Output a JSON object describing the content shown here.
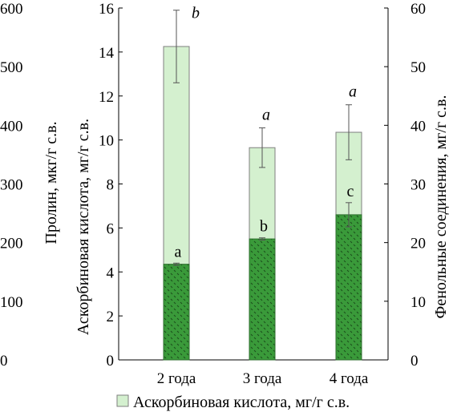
{
  "chart_data": {
    "type": "bar",
    "categories": [
      "2 года",
      "3 года",
      "4 года"
    ],
    "axes": {
      "left_outer": {
        "label": "Пролин, мкг/г с.в.",
        "ylim": [
          0,
          600
        ],
        "ticks": [
          "0",
          "100",
          "200",
          "300",
          "400",
          "500",
          "600"
        ]
      },
      "left_inner": {
        "label": "Аскорбиновая кислота, мг/г с.в.",
        "ylim": [
          0,
          16
        ],
        "ticks": [
          "0",
          "2",
          "4",
          "6",
          "8",
          "10",
          "12",
          "14",
          "16"
        ]
      },
      "right": {
        "label": "Фенольные соединения, мг/г с.в.",
        "ylim": [
          0,
          60
        ],
        "ticks": [
          "0",
          "10",
          "20",
          "30",
          "40",
          "50",
          "60"
        ]
      }
    },
    "series": [
      {
        "name": "Аскорбиновая кислота, мг/г с.в.",
        "axis": "left_inner",
        "color": "#d4f0cf",
        "values": [
          14.25,
          9.65,
          10.35
        ],
        "error": [
          1.65,
          0.9,
          1.25
        ],
        "significance": [
          "b",
          "a",
          "a"
        ]
      },
      {
        "axis": "left_inner",
        "color": "#3a9a3a",
        "pattern": "dots",
        "values": [
          4.35,
          5.5,
          6.6
        ],
        "error": [
          0.05,
          0.05,
          0.55
        ],
        "significance": [
          "a",
          "b",
          "c"
        ]
      }
    ],
    "legend": {
      "position": "bottom"
    }
  }
}
